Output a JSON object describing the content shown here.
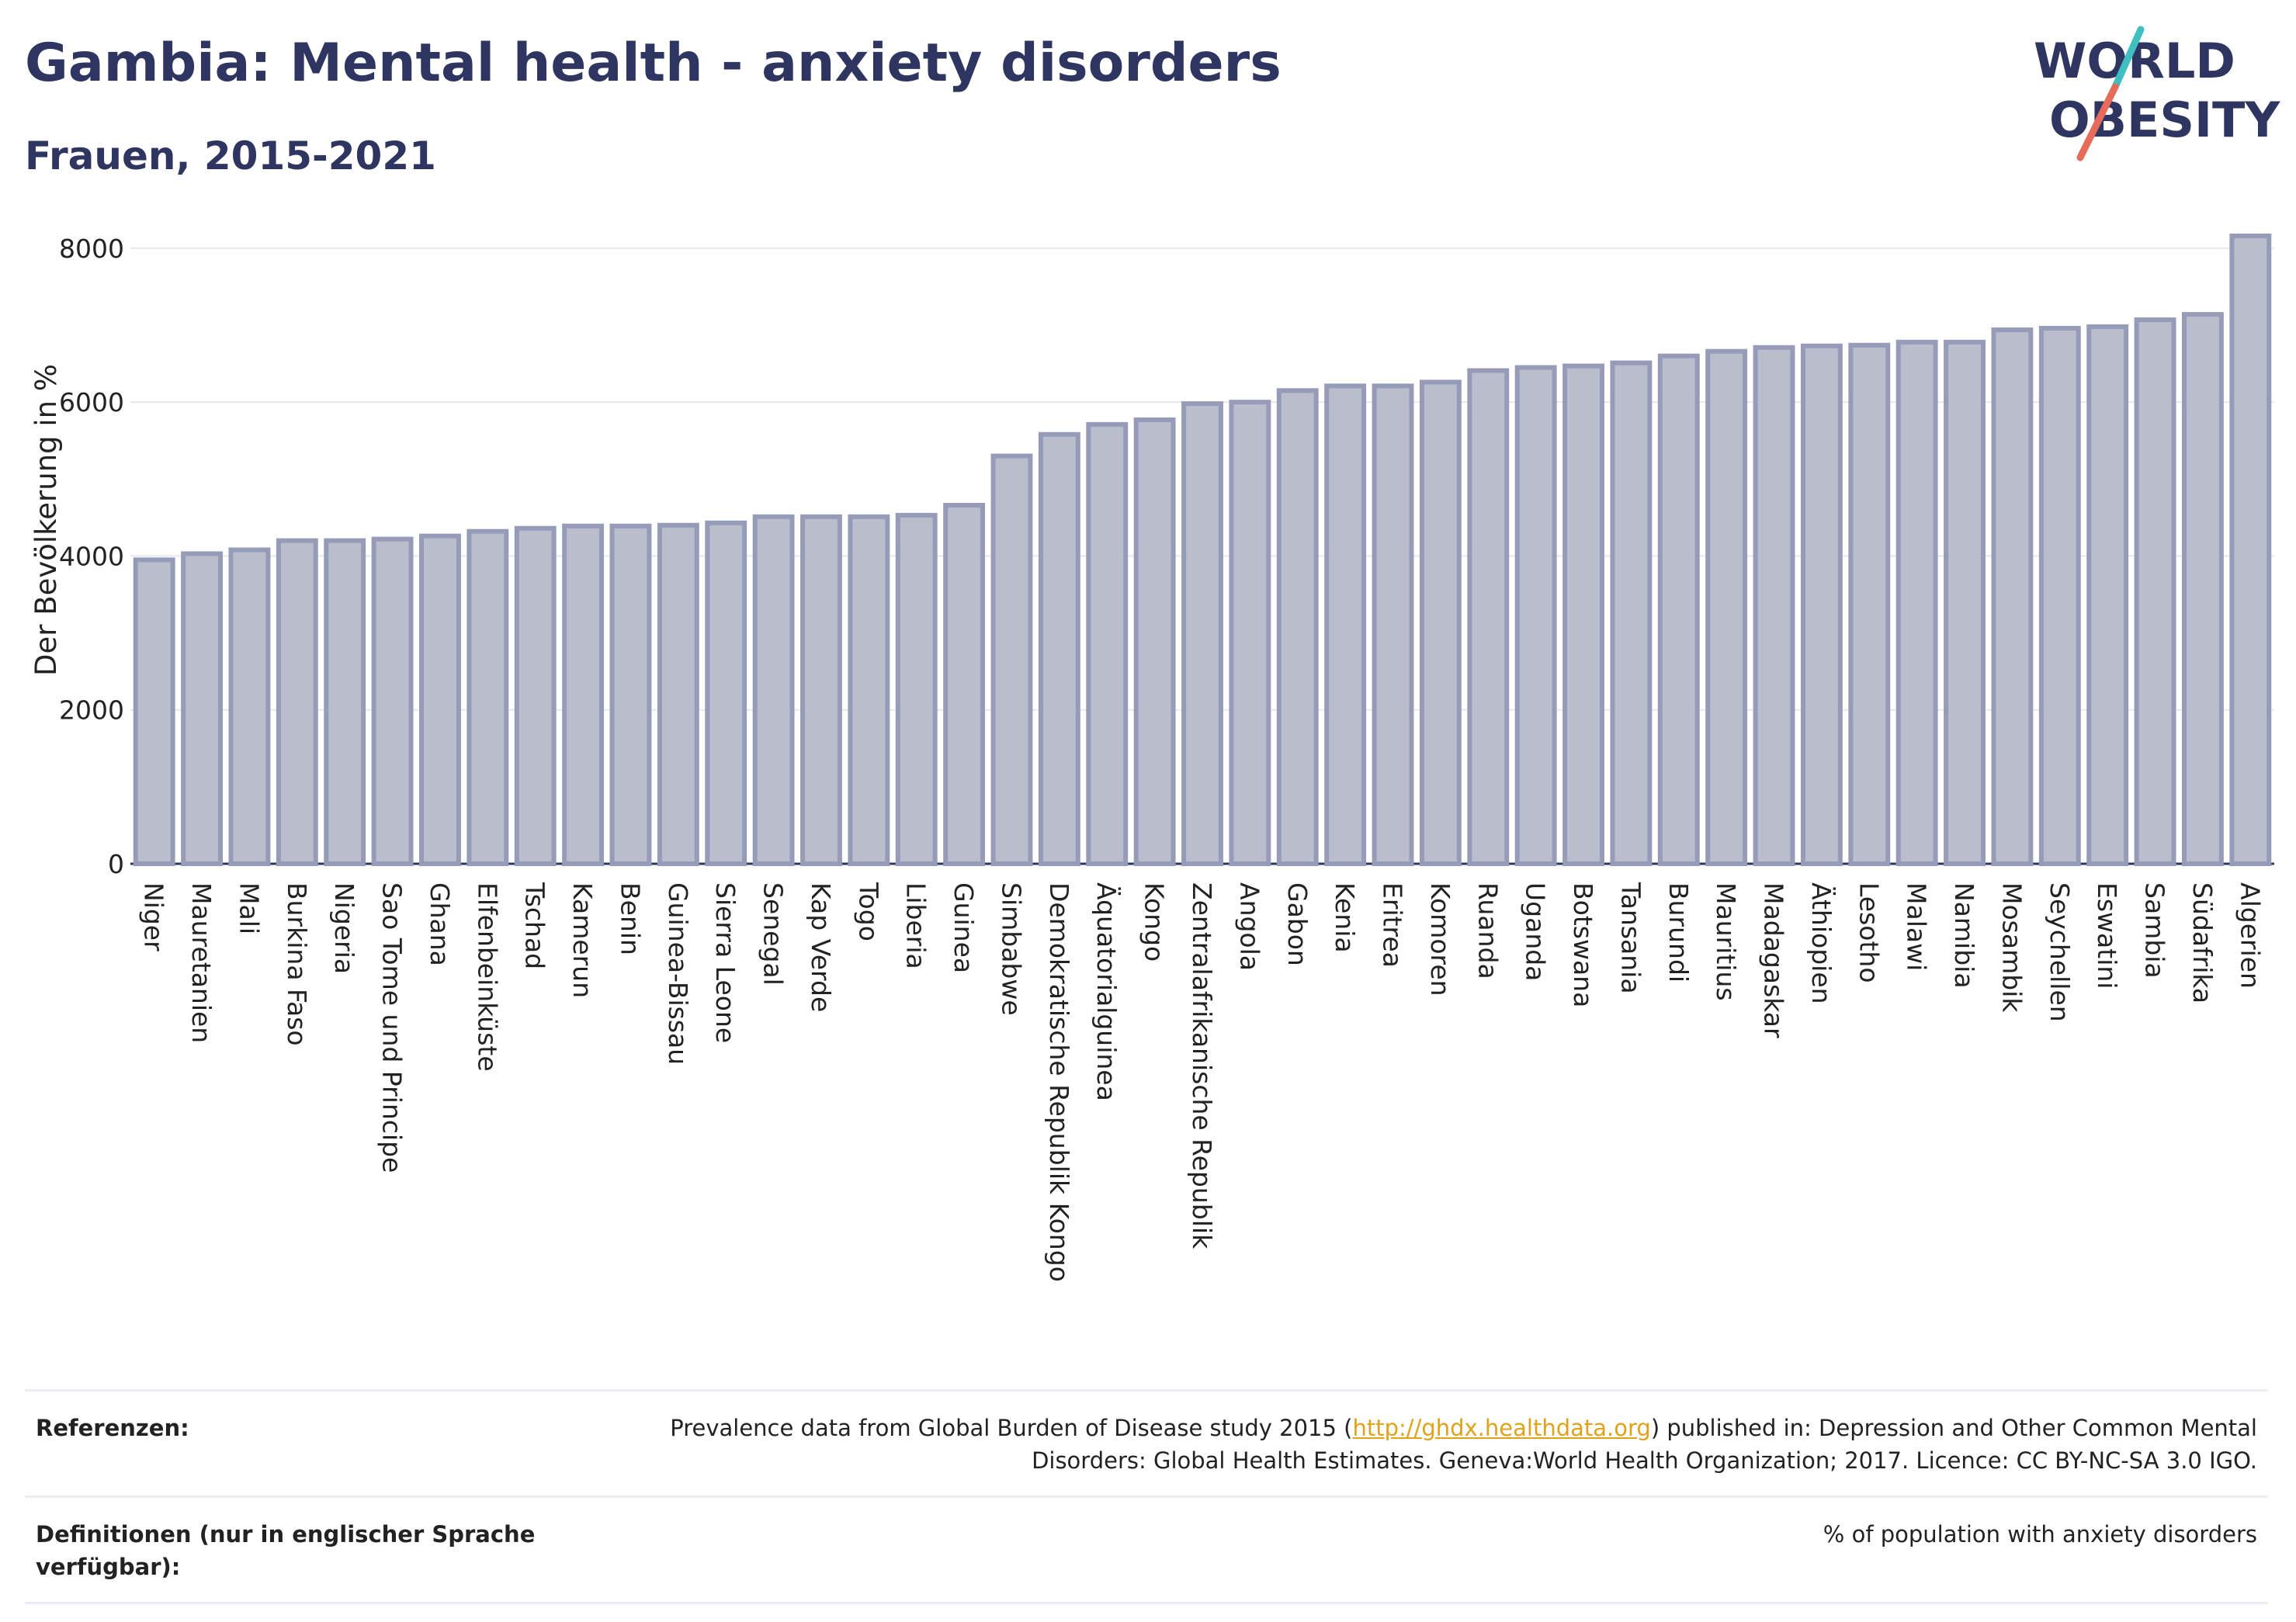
{
  "header": {
    "title": "Gambia: Mental health - anxiety disorders",
    "subtitle": "Frauen, 2015-2021"
  },
  "logo": {
    "text_line1": "WORLD",
    "text_line2": "OBESITY",
    "colors": {
      "text": "#2e3560",
      "slash_teal": "#3fbfbf",
      "slash_red": "#e66b5b"
    }
  },
  "chart_data": {
    "type": "bar",
    "title": "Gambia: Mental health - anxiety disorders",
    "subtitle": "Frauen, 2015-2021",
    "ylabel": "Der Bevölkerung in %",
    "xlabel": "",
    "ylim": [
      0,
      8200
    ],
    "yticks": [
      "0",
      "2000",
      "4000",
      "6000",
      "8000"
    ],
    "grid": true,
    "bar_color": "#b9bdcc",
    "bar_edge_color": "#969bb8",
    "categories": [
      "Niger",
      "Mauretanien",
      "Mali",
      "Burkina Faso",
      "Nigeria",
      "Sao Tome und Principe",
      "Ghana",
      "Elfenbeinküste",
      "Tschad",
      "Kamerun",
      "Benin",
      "Guinea-Bissau",
      "Sierra Leone",
      "Senegal",
      "Kap Verde",
      "Togo",
      "Liberia",
      "Guinea",
      "Simbabwe",
      "Demokratische Republik Kongo",
      "Äquatorialguinea",
      "Kongo",
      "Zentralafrikanische Republik",
      "Angola",
      "Gabon",
      "Kenia",
      "Eritrea",
      "Komoren",
      "Ruanda",
      "Uganda",
      "Botswana",
      "Tansania",
      "Burundi",
      "Mauritius",
      "Madagaskar",
      "Äthiopien",
      "Lesotho",
      "Malawi",
      "Namibia",
      "Mosambik",
      "Seychellen",
      "Eswatini",
      "Sambia",
      "Südafrika",
      "Algerien"
    ],
    "values": [
      3950,
      4030,
      4080,
      4200,
      4200,
      4220,
      4260,
      4320,
      4360,
      4390,
      4390,
      4400,
      4430,
      4510,
      4510,
      4510,
      4530,
      4660,
      5300,
      5580,
      5710,
      5770,
      5980,
      6000,
      6150,
      6210,
      6210,
      6260,
      6410,
      6450,
      6470,
      6510,
      6600,
      6660,
      6710,
      6730,
      6740,
      6780,
      6780,
      6940,
      6960,
      6980,
      7070,
      7140,
      8160
    ]
  },
  "footer": {
    "references_label": "Referenzen:",
    "references_pre": "Prevalence data from Global Burden of Disease study 2015 (",
    "references_link": "http://ghdx.healthdata.org",
    "references_post": ") published in: Depression and Other Common Mental Disorders: Global Health Estimates. Geneva:World Health Organization; 2017. Licence: CC BY-NC-SA 3.0 IGO.",
    "definitions_label": "Definitionen (nur in englischer Sprache verfügbar):",
    "definitions_text": "% of population with anxiety disorders"
  }
}
